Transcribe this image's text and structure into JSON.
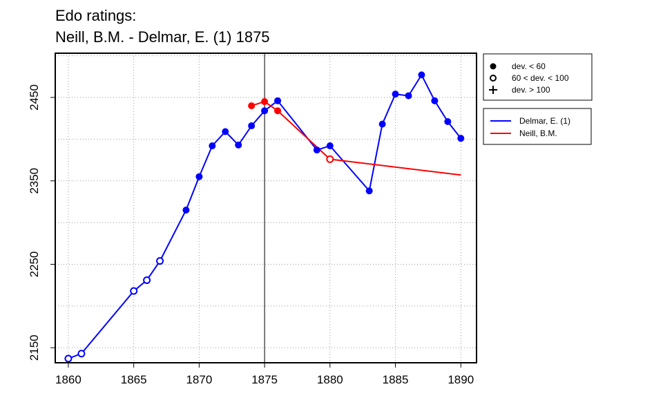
{
  "chart_data": {
    "type": "line",
    "title_lines": [
      "Edo ratings:",
      "Neill, B.M. - Delmar, E. (1) 1875"
    ],
    "xlabel": "",
    "ylabel": "",
    "xlim": [
      1859,
      1891.2
    ],
    "ylim": [
      2132,
      2503
    ],
    "x_ticks": [
      1860,
      1865,
      1870,
      1875,
      1880,
      1885,
      1890
    ],
    "x_tick_labels": [
      "1860",
      "1865",
      "1870",
      "1875",
      "1880",
      "1885",
      "1890"
    ],
    "y_ticks": [
      2150,
      2250,
      2350,
      2450
    ],
    "y_tick_labels": [
      "2150",
      "2250",
      "2350",
      "2450"
    ],
    "y_gridlines": [
      2150,
      2200,
      2250,
      2300,
      2350,
      2400,
      2450,
      2500
    ],
    "x_gridlines": [
      1860,
      1865,
      1870,
      1875,
      1880,
      1885,
      1890
    ],
    "grid": true,
    "vline": 1875,
    "legend_position": "right",
    "marker_legend": [
      {
        "symbol": "filled-circle",
        "label": "dev. < 60"
      },
      {
        "symbol": "open-circle",
        "label": "60 < dev. < 100"
      },
      {
        "symbol": "plus",
        "label": "dev. > 100"
      }
    ],
    "series": [
      {
        "name": "Delmar, E. (1)",
        "color": "#0000ff",
        "x": [
          1860,
          1861,
          1865,
          1866,
          1867,
          1869,
          1870,
          1871,
          1872,
          1873,
          1874,
          1875,
          1876,
          1879,
          1880,
          1883,
          1884,
          1885,
          1886,
          1887,
          1888,
          1889,
          1890
        ],
        "y": [
          2137,
          2143,
          2218,
          2231,
          2254,
          2315,
          2355,
          2392,
          2409,
          2393,
          2416,
          2434,
          2446,
          2387,
          2392,
          2338,
          2418,
          2454,
          2452,
          2477,
          2446,
          2421,
          2401
        ],
        "markers": [
          "open",
          "open",
          "open",
          "open",
          "open",
          "filled",
          "filled",
          "filled",
          "filled",
          "filled",
          "filled",
          "filled",
          "filled",
          "filled",
          "filled",
          "filled",
          "filled",
          "filled",
          "filled",
          "filled",
          "filled",
          "filled",
          "filled"
        ]
      },
      {
        "name": "Neill, B.M.",
        "color": "#ff0000",
        "x": [
          1874,
          1875,
          1876,
          1880,
          1890
        ],
        "y": [
          2440,
          2445,
          2434,
          2376,
          2357
        ],
        "markers": [
          "filled",
          "filled",
          "filled",
          "open",
          "none"
        ]
      }
    ]
  }
}
